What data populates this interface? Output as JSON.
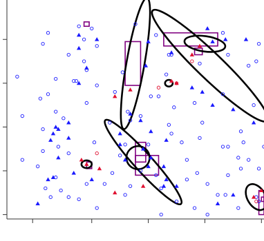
{
  "chart_data": {
    "type": "scatter",
    "title": "",
    "xlabel": "",
    "ylabel": "",
    "xlim": [
      0,
      100
    ],
    "ylim": [
      0,
      100
    ],
    "x_ticks": [
      10,
      33,
      55,
      77,
      99
    ],
    "y_ticks": [
      2,
      22,
      42,
      62,
      82
    ],
    "grid": false,
    "legend": "none",
    "colors": {
      "blue": "#1a1aff",
      "red": "#e01030",
      "purple": "#800080",
      "black": "#000000"
    },
    "series": [
      {
        "marker": "open-circle",
        "color": "#1a1aff",
        "points": [
          [
            16,
            85
          ],
          [
            14,
            80
          ],
          [
            28,
            88
          ],
          [
            33,
            87
          ],
          [
            30,
            82
          ],
          [
            35,
            79
          ],
          [
            50,
            89
          ],
          [
            58,
            84
          ],
          [
            84,
            85
          ],
          [
            98,
            80
          ],
          [
            24,
            75
          ],
          [
            30,
            72
          ],
          [
            27,
            63
          ],
          [
            19,
            64
          ],
          [
            26,
            63
          ],
          [
            35,
            61
          ],
          [
            45,
            67
          ],
          [
            62,
            66
          ],
          [
            64,
            75
          ],
          [
            75,
            71
          ],
          [
            86,
            75
          ],
          [
            94,
            70
          ],
          [
            97,
            72
          ],
          [
            102,
            60
          ],
          [
            109,
            68
          ],
          [
            104,
            53
          ],
          [
            96,
            52
          ],
          [
            84,
            57
          ],
          [
            73,
            53
          ],
          [
            65,
            51
          ],
          [
            59,
            56
          ],
          [
            56,
            56
          ],
          [
            42,
            58
          ],
          [
            31,
            53
          ],
          [
            19,
            49
          ],
          [
            22,
            46
          ],
          [
            6,
            47
          ],
          [
            20,
            33
          ],
          [
            14,
            31
          ],
          [
            34,
            35
          ],
          [
            46,
            34
          ],
          [
            44,
            29
          ],
          [
            55,
            34
          ],
          [
            68,
            35
          ],
          [
            70,
            27
          ],
          [
            64,
            39
          ],
          [
            75,
            37
          ],
          [
            84,
            33
          ],
          [
            91,
            40
          ],
          [
            92,
            35
          ],
          [
            86,
            33
          ],
          [
            90,
            28
          ],
          [
            94,
            27
          ],
          [
            100,
            33
          ],
          [
            103,
            30
          ],
          [
            108,
            38
          ],
          [
            74,
            21
          ],
          [
            78,
            16
          ],
          [
            70,
            18
          ],
          [
            58,
            20
          ],
          [
            52,
            22
          ],
          [
            48,
            15
          ],
          [
            46,
            11
          ],
          [
            38,
            16
          ],
          [
            31,
            16
          ],
          [
            28,
            9
          ],
          [
            24,
            10
          ],
          [
            19,
            19
          ],
          [
            15,
            14
          ],
          [
            17,
            10
          ],
          [
            12,
            24
          ],
          [
            6,
            27
          ],
          [
            35,
            5
          ],
          [
            60,
            2
          ],
          [
            66,
            8
          ],
          [
            73,
            5
          ],
          [
            78,
            2
          ],
          [
            82,
            11
          ],
          [
            85,
            11
          ],
          [
            90,
            5
          ],
          [
            97,
            10
          ],
          [
            86,
            20
          ],
          [
            91,
            23
          ],
          [
            98,
            8
          ],
          [
            63,
            75
          ],
          [
            47,
            49
          ],
          [
            48,
            45
          ],
          [
            21,
            13
          ],
          [
            106,
            41
          ],
          [
            98,
            23
          ],
          [
            76,
            44
          ],
          [
            40,
            44
          ],
          [
            4,
            65
          ],
          [
            14,
            41
          ],
          [
            24,
            30
          ],
          [
            41,
            21
          ],
          [
            52,
            47
          ],
          [
            63,
            43
          ],
          [
            60,
            14
          ],
          [
            31,
            68
          ],
          [
            13,
            55
          ],
          [
            16,
            57
          ]
        ]
      },
      {
        "marker": "filled-triangle",
        "color": "#1a1aff",
        "points": [
          [
            28,
            84
          ],
          [
            28,
            78
          ],
          [
            35,
            82
          ],
          [
            31,
            69
          ],
          [
            55,
            81
          ],
          [
            64,
            76
          ],
          [
            78,
            87
          ],
          [
            80,
            81
          ],
          [
            85,
            82
          ],
          [
            93,
            82
          ],
          [
            54,
            70
          ],
          [
            72,
            60
          ],
          [
            76,
            58
          ],
          [
            80,
            52
          ],
          [
            88,
            50
          ],
          [
            20,
            41
          ],
          [
            19,
            42
          ],
          [
            24,
            44
          ],
          [
            17,
            36
          ],
          [
            18,
            39
          ],
          [
            24,
            37
          ],
          [
            48,
            48
          ],
          [
            52,
            45
          ],
          [
            44,
            34
          ],
          [
            56,
            40
          ],
          [
            62,
            36
          ],
          [
            55,
            24
          ],
          [
            56,
            28
          ],
          [
            61,
            24
          ],
          [
            62,
            18
          ],
          [
            61,
            15
          ],
          [
            66,
            15
          ],
          [
            82,
            7
          ],
          [
            88,
            11
          ],
          [
            20,
            28
          ],
          [
            18,
            19
          ],
          [
            16,
            18
          ],
          [
            26,
            21
          ],
          [
            53,
            32
          ],
          [
            28,
            62
          ],
          [
            33,
            18
          ],
          [
            104,
            39
          ],
          [
            96,
            44
          ],
          [
            101,
            38
          ],
          [
            12,
            7
          ],
          [
            46,
            27
          ],
          [
            44,
            39
          ]
        ]
      },
      {
        "marker": "filled-triangle",
        "color": "#e01030",
        "points": [
          [
            29,
            27
          ],
          [
            36,
            23
          ],
          [
            48,
            59
          ],
          [
            64,
            63
          ],
          [
            66,
            62
          ],
          [
            42,
            56
          ],
          [
            42,
            12
          ],
          [
            53,
            15
          ],
          [
            99,
            13
          ],
          [
            96,
            10
          ],
          [
            102,
            8
          ],
          [
            72,
            75
          ],
          [
            75,
            79
          ],
          [
            31,
            25
          ]
        ]
      },
      {
        "marker": "open-circle",
        "color": "#e01030",
        "points": [
          [
            35,
            30
          ],
          [
            72,
            72
          ],
          [
            59,
            60
          ],
          [
            66,
            62
          ],
          [
            97,
            8
          ]
        ]
      }
    ],
    "ellipses": [
      {
        "cx": 50,
        "cy": 71,
        "rx": 26,
        "ry": 3.5,
        "angle": 80,
        "color": "#000000"
      },
      {
        "cx": 79,
        "cy": 70,
        "rx": 31,
        "ry": 5,
        "angle": -44,
        "color": "#000000"
      },
      {
        "cx": 77,
        "cy": 80,
        "rx": 8,
        "ry": 3,
        "angle": -8,
        "color": "#000000"
      },
      {
        "cx": 53,
        "cy": 26,
        "rx": 22,
        "ry": 3.5,
        "angle": -48,
        "color": "#000000"
      },
      {
        "cx": 51,
        "cy": 28,
        "rx": 4.5,
        "ry": 4.5,
        "angle": 0,
        "color": "#000000"
      },
      {
        "cx": 31,
        "cy": 25,
        "rx": 2,
        "ry": 1.5,
        "angle": 0,
        "color": "#000000"
      },
      {
        "cx": 63,
        "cy": 62,
        "rx": 1.5,
        "ry": 1.3,
        "angle": 0,
        "color": "#000000"
      },
      {
        "cx": 97,
        "cy": 10,
        "rx": 5.5,
        "ry": 3.5,
        "angle": -60,
        "color": "#000000"
      }
    ],
    "rectangles": [
      {
        "x0": 46,
        "x1": 52,
        "y0": 61,
        "y1": 81,
        "color": "#800080"
      },
      {
        "x0": 61,
        "x1": 82,
        "y0": 79,
        "y1": 85,
        "color": "#800080"
      },
      {
        "x0": 73,
        "x1": 76,
        "y0": 75,
        "y1": 78,
        "color": "#800080"
      },
      {
        "x0": 50,
        "x1": 54,
        "y0": 26,
        "y1": 35,
        "color": "#800080"
      },
      {
        "x0": 50,
        "x1": 59,
        "y0": 20,
        "y1": 29,
        "color": "#800080"
      },
      {
        "x0": 30,
        "x1": 32,
        "y0": 88,
        "y1": 90,
        "color": "#800080"
      },
      {
        "x0": 31,
        "x1": 33,
        "y0": 23,
        "y1": 26,
        "color": "#800080"
      },
      {
        "x0": 98,
        "x1": 100,
        "y0": 2,
        "y1": 13,
        "color": "#800080"
      },
      {
        "x0": 99,
        "x1": 100,
        "y0": 8,
        "y1": 10,
        "color": "#800080"
      }
    ]
  }
}
